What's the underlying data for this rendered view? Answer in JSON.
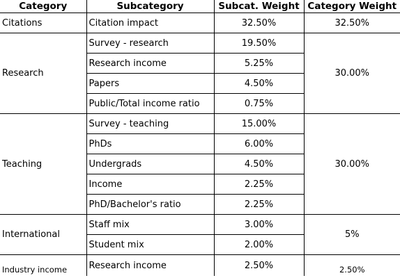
{
  "headers": {
    "category": "Category",
    "subcategory": "Subcategory",
    "subcat_weight": "Subcat. Weight",
    "category_weight": "Category Weight"
  },
  "groups": [
    {
      "category": "Citations",
      "category_weight": "32.50%",
      "rows": [
        {
          "subcategory": "Citation impact",
          "weight": "32.50%"
        }
      ]
    },
    {
      "category": "Research",
      "category_weight": "30.00%",
      "rows": [
        {
          "subcategory": "Survey - research",
          "weight": "19.50%"
        },
        {
          "subcategory": "Research income",
          "weight": "5.25%"
        },
        {
          "subcategory": "Papers",
          "weight": "4.50%"
        },
        {
          "subcategory": "Public/Total income ratio",
          "weight": "0.75%"
        }
      ]
    },
    {
      "category": "Teaching",
      "category_weight": "30.00%",
      "rows": [
        {
          "subcategory": "Survey - teaching",
          "weight": "15.00%"
        },
        {
          "subcategory": "PhDs",
          "weight": "6.00%"
        },
        {
          "subcategory": "Undergrads",
          "weight": "4.50%"
        },
        {
          "subcategory": "Income",
          "weight": "2.25%"
        },
        {
          "subcategory": "PhD/Bachelor's ratio",
          "weight": "2.25%"
        }
      ]
    },
    {
      "category": "International",
      "category_weight": "5%",
      "rows": [
        {
          "subcategory": "Staff mix",
          "weight": "3.00%"
        },
        {
          "subcategory": "Student mix",
          "weight": "2.00%"
        }
      ]
    },
    {
      "category": "Industry income",
      "category_weight": "2.50%",
      "rows": [
        {
          "subcategory": "Research income",
          "weight": "2.50%"
        }
      ]
    }
  ]
}
